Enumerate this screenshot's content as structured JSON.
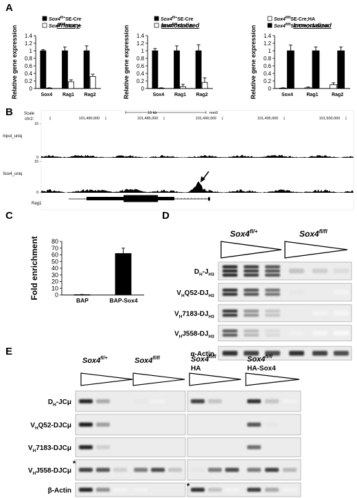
{
  "panel_letters": [
    "A",
    "B",
    "C",
    "D",
    "E"
  ],
  "chart_data": [
    {
      "type": "bar",
      "title": "Primary",
      "ylabel": "Relative gene expression",
      "ylim": [
        0,
        1.4
      ],
      "yticks": [
        "0",
        "0.2",
        "0.4",
        "0.6",
        "0.8",
        "1",
        "1.2",
        "1.4"
      ],
      "categories": [
        "Sox4",
        "Rag1",
        "Rag2"
      ],
      "series": [
        {
          "name_main": "Sox4",
          "name_sup": "fl/+",
          "name_rest": "SE-Cre",
          "color": "#000000",
          "values": [
            1.0,
            1.0,
            1.0
          ],
          "errors": [
            0.03,
            0.1,
            0.13
          ]
        },
        {
          "name_main": "Sox4",
          "name_sup": "fl/fl",
          "name_rest": "SE-Cre",
          "color": "#ffffff",
          "values": [
            0.01,
            0.18,
            0.32
          ],
          "errors": [
            0.01,
            0.05,
            0.06
          ]
        }
      ]
    },
    {
      "type": "bar",
      "title": "Immortalized",
      "ylabel": "Relative gene expression",
      "ylim": [
        0,
        1.4
      ],
      "yticks": [
        "0",
        "0.2",
        "0.4",
        "0.6",
        "0.8",
        "1",
        "1.2",
        "1.4"
      ],
      "categories": [
        "Sox4",
        "Rag1",
        "Rag2"
      ],
      "series": [
        {
          "name_main": "Sox4",
          "name_sup": "fl/+",
          "name_rest": "SE-Cre",
          "color": "#000000",
          "values": [
            1.0,
            1.0,
            1.0
          ],
          "errors": [
            0.06,
            0.13,
            0.16
          ]
        },
        {
          "name_main": "Sox4",
          "name_sup": "fl/fl",
          "name_rest": "SE-Cre",
          "color": "#ffffff",
          "values": [
            0.01,
            0.05,
            0.16
          ],
          "errors": [
            0.01,
            0.06,
            0.12
          ]
        }
      ]
    },
    {
      "type": "bar",
      "title": "Immortalized",
      "ylabel": "Relative gene expression",
      "ylim": [
        0,
        1.4
      ],
      "yticks": [
        "0",
        "0.2",
        "0.4",
        "0.6",
        "0.8",
        "1",
        "1.2",
        "1.4"
      ],
      "categories": [
        "Sox4",
        "Rag1",
        "Rag2"
      ],
      "series": [
        {
          "name_main": "Sox4",
          "name_sup": "fl/fl",
          "name_rest": "SE-Cre;HA",
          "color": "#ffffff",
          "values": [
            0.01,
            0.02,
            0.1
          ],
          "errors": [
            0.01,
            0.02,
            0.05
          ]
        },
        {
          "name_main": "Sox4",
          "name_sup": "fl/fl",
          "name_rest": "SE-Cre;HA-Sox4",
          "color": "#000000",
          "values": [
            1.0,
            1.0,
            1.0
          ],
          "errors": [
            0.15,
            0.1,
            0.1
          ]
        }
      ]
    },
    {
      "type": "bar",
      "title": "",
      "ylabel": "Fold enrichment",
      "ylim": [
        0,
        80
      ],
      "yticks": [
        "0",
        "10",
        "20",
        "30",
        "40",
        "50",
        "60",
        "70",
        "80"
      ],
      "categories": [
        "BAP",
        "BAP-Sox4"
      ],
      "series": [
        {
          "name_main": "",
          "name_sup": "",
          "name_rest": "",
          "color": "#000000",
          "values": [
            0.5,
            62
          ],
          "errors": [
            0.3,
            8
          ]
        }
      ]
    }
  ],
  "panel_b": {
    "scale_label": "Scale",
    "chr_label": "chr2:",
    "scale_bar": "10 kb",
    "assembly": "mm9",
    "positions": [
      "101,480,000",
      "101,485,000",
      "101,490,000",
      "101,495,000",
      "101,500,000"
    ],
    "tracks": [
      {
        "name": "Input_uniq",
        "max": "15 -",
        "min": "0 -"
      },
      {
        "name": "Sox4_uniq",
        "max": "15 -",
        "min": "0 -"
      }
    ],
    "gene": "Rag1"
  },
  "panel_d": {
    "group1_main": "Sox4",
    "group1_sup": "fl/+",
    "group2_main": "Sox4",
    "group2_sup": "fl/fl",
    "rows": [
      {
        "pre": "D",
        "pre_sub": "H",
        "mid": "-J",
        "mid_sub": "H3"
      },
      {
        "pre": "V",
        "pre_sub": "H",
        "mid": "Q52-DJ",
        "mid_sub": "H3"
      },
      {
        "pre": "V",
        "pre_sub": "H",
        "mid": "7183-DJ",
        "mid_sub": "H3"
      },
      {
        "pre": "V",
        "pre_sub": "H",
        "mid": "J558-DJ",
        "mid_sub": "H3"
      },
      {
        "pre": "α-Actin",
        "pre_sub": "",
        "mid": "",
        "mid_sub": ""
      }
    ]
  },
  "panel_e": {
    "groups": [
      {
        "line1_main": "Sox4",
        "line1_sup": "fl/+",
        "line2": ""
      },
      {
        "line1_main": "Sox4",
        "line1_sup": "fl/fl",
        "line2": ""
      },
      {
        "line1_main": "Sox4",
        "line1_sup": "fl/fl",
        "line2": "HA"
      },
      {
        "line1_main": "Sox4",
        "line1_sup": "fl/fl",
        "line2": "HA-Sox4"
      }
    ],
    "rows": [
      {
        "pre": "D",
        "pre_sub": "H",
        "mid": "-JCμ"
      },
      {
        "pre": "V",
        "pre_sub": "H",
        "mid": "Q52-DJCμ"
      },
      {
        "pre": "V",
        "pre_sub": "H",
        "mid": "7183-DJCμ"
      },
      {
        "pre": "V",
        "pre_sub": "H",
        "mid": "J558-DJCμ"
      },
      {
        "pre": "β-Actin",
        "pre_sub": "",
        "mid": ""
      }
    ],
    "asterisk": "*"
  }
}
